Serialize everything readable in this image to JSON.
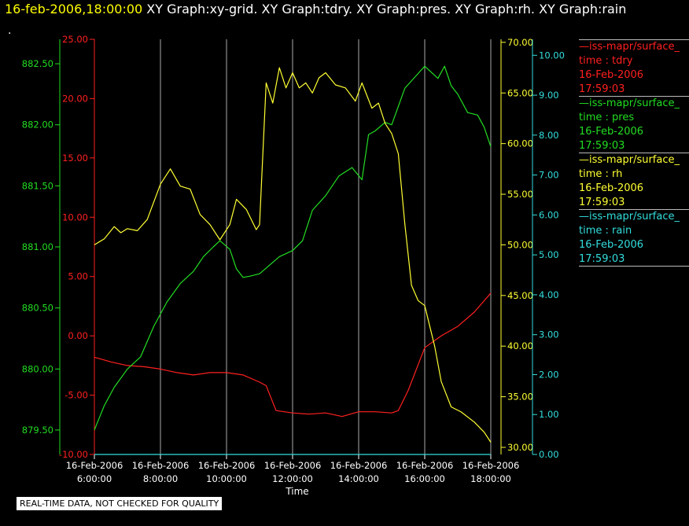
{
  "header": {
    "datetime": "16-feb-2006,18:00:00",
    "titles": " XY Graph:xy-grid.  XY Graph:tdry.  XY Graph:pres.  XY Graph:rh.  XY Graph:rain"
  },
  "marker": ".",
  "footer_note": "REAL-TIME DATA, NOT CHECKED FOR QUALITY",
  "colors": {
    "tdry": "#ff2020",
    "pres": "#22dd22",
    "rh": "#ffff33",
    "rain": "#33dddd",
    "grid": "#aaaaaa"
  },
  "legend": [
    {
      "name": "—iss-mapr/surface_",
      "label": "time : tdry",
      "date": "16-Feb-2006",
      "time": "17:59:03",
      "color": "#ff2020"
    },
    {
      "name": "—iss-mapr/surface_",
      "label": "time : pres",
      "date": "16-Feb-2006",
      "time": "17:59:03",
      "color": "#22dd22"
    },
    {
      "name": "—iss-mapr/surface_",
      "label": "time : rh",
      "date": "16-Feb-2006",
      "time": "17:59:03",
      "color": "#ffff33"
    },
    {
      "name": "—iss-mapr/surface_",
      "label": "time : rain",
      "date": "16-Feb-2006",
      "time": "17:59:03",
      "color": "#33dddd"
    }
  ],
  "chart_data": {
    "type": "line",
    "xlabel": "Time",
    "x_ticks": [
      {
        "x": 6,
        "date": "16-Feb-2006",
        "time": "6:00:00"
      },
      {
        "x": 8,
        "date": "16-Feb-2006",
        "time": "8:00:00"
      },
      {
        "x": 10,
        "date": "16-Feb-2006",
        "time": "10:00:00"
      },
      {
        "x": 12,
        "date": "16-Feb-2006",
        "time": "12:00:00"
      },
      {
        "x": 14,
        "date": "16-Feb-2006",
        "time": "14:00:00"
      },
      {
        "x": 16,
        "date": "16-Feb-2006",
        "time": "16:00:00"
      },
      {
        "x": 18,
        "date": "16-Feb-2006",
        "time": "18:00:00"
      }
    ],
    "xlim": [
      6,
      18
    ],
    "grid": true,
    "axes": {
      "pres": {
        "range": [
          879.3,
          882.7
        ],
        "ticks": [
          "879.50",
          "880.00",
          "880.50",
          "881.00",
          "881.50",
          "882.00",
          "882.50"
        ]
      },
      "tdry": {
        "range": [
          -10,
          25
        ],
        "ticks": [
          "-10.00",
          "-5.00",
          "0.00",
          "5.00",
          "10.00",
          "15.00",
          "20.00",
          "25.00"
        ]
      },
      "rh": {
        "range": [
          29.3,
          70.3
        ],
        "ticks": [
          "30.00",
          "35.00",
          "40.00",
          "45.00",
          "50.00",
          "55.00",
          "60.00",
          "65.00",
          "70.00"
        ]
      },
      "rain": {
        "range": [
          0,
          10.4
        ],
        "ticks": [
          "0.00",
          "1.00",
          "2.00",
          "3.00",
          "4.00",
          "5.00",
          "6.00",
          "7.00",
          "8.00",
          "9.00",
          "10.00"
        ]
      }
    },
    "series": [
      {
        "name": "tdry",
        "axis": "tdry",
        "color": "#ff2020",
        "x": [
          6.0,
          6.5,
          7.0,
          7.5,
          8.0,
          8.5,
          9.0,
          9.5,
          10.0,
          10.5,
          11.0,
          11.2,
          11.5,
          12.0,
          12.5,
          13.0,
          13.5,
          14.0,
          14.5,
          15.0,
          15.2,
          15.5,
          16.0,
          16.5,
          17.0,
          17.5,
          18.0
        ],
        "y": [
          -1.8,
          -2.2,
          -2.5,
          -2.6,
          -2.8,
          -3.1,
          -3.3,
          -3.1,
          -3.1,
          -3.3,
          -3.9,
          -4.2,
          -6.3,
          -6.5,
          -6.6,
          -6.5,
          -6.8,
          -6.4,
          -6.4,
          -6.5,
          -6.3,
          -4.6,
          -1.0,
          0.0,
          0.8,
          2.0,
          3.6
        ]
      },
      {
        "name": "pres",
        "axis": "pres",
        "color": "#22dd22",
        "x": [
          6.0,
          6.3,
          6.6,
          7.0,
          7.4,
          7.8,
          8.2,
          8.6,
          9.0,
          9.3,
          9.6,
          9.8,
          10.1,
          10.3,
          10.5,
          10.7,
          11.0,
          11.3,
          11.6,
          12.0,
          12.3,
          12.6,
          13.0,
          13.4,
          13.8,
          14.1,
          14.3,
          14.5,
          14.8,
          15.0,
          15.4,
          15.8,
          16.0,
          16.4,
          16.6,
          16.8,
          17.0,
          17.3,
          17.6,
          17.8,
          18.0
        ],
        "y": [
          879.5,
          879.7,
          879.85,
          880.0,
          880.1,
          880.35,
          880.55,
          880.7,
          880.8,
          880.92,
          881.0,
          881.05,
          880.98,
          880.82,
          880.75,
          880.76,
          880.78,
          880.85,
          880.92,
          880.97,
          881.05,
          881.3,
          881.42,
          881.58,
          881.65,
          881.55,
          881.92,
          881.95,
          882.02,
          882.0,
          882.3,
          882.42,
          882.48,
          882.38,
          882.48,
          882.32,
          882.25,
          882.1,
          882.08,
          881.98,
          881.82
        ]
      },
      {
        "name": "rh",
        "axis": "rh",
        "color": "#ffff33",
        "x": [
          6.0,
          6.3,
          6.6,
          6.8,
          7.0,
          7.3,
          7.6,
          8.0,
          8.3,
          8.6,
          8.9,
          9.2,
          9.5,
          9.8,
          10.1,
          10.3,
          10.6,
          10.9,
          11.0,
          11.2,
          11.4,
          11.6,
          11.8,
          12.0,
          12.2,
          12.4,
          12.6,
          12.8,
          13.0,
          13.3,
          13.6,
          13.9,
          14.1,
          14.4,
          14.6,
          14.8,
          15.0,
          15.2,
          15.4,
          15.6,
          15.8,
          16.0,
          16.3,
          16.5,
          16.8,
          17.1,
          17.5,
          17.8,
          18.0
        ],
        "y": [
          50.0,
          50.6,
          51.8,
          51.2,
          51.6,
          51.4,
          52.5,
          56.0,
          57.5,
          55.8,
          55.5,
          53.0,
          52.0,
          50.5,
          52.0,
          54.5,
          53.5,
          51.5,
          52.0,
          66.0,
          64.0,
          67.5,
          65.5,
          67.0,
          65.5,
          66.0,
          65.0,
          66.5,
          67.0,
          65.8,
          65.5,
          64.2,
          66.0,
          63.5,
          64.0,
          62.0,
          61.0,
          59.0,
          52.0,
          46.0,
          44.5,
          44.0,
          40.0,
          36.5,
          34.0,
          33.5,
          32.5,
          31.5,
          30.5
        ]
      },
      {
        "name": "rain",
        "axis": "rain",
        "color": "#33dddd",
        "x": [
          6.0,
          18.0
        ],
        "y": [
          0.0,
          0.0
        ]
      }
    ]
  }
}
